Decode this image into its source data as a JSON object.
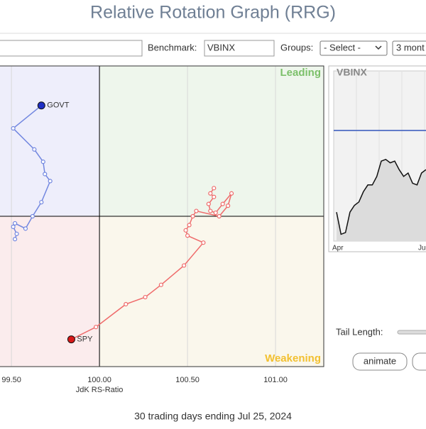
{
  "header": {
    "title": "Relative Rotation Graph (RRG)"
  },
  "toolbar": {
    "benchmark_label": "Benchmark:",
    "benchmark_value": "VBINX",
    "groups_label": "Groups:",
    "groups_value": "- Select -",
    "period_value": "3 mont"
  },
  "chart_data": {
    "type": "line",
    "x_label": "JdK RS-Ratio",
    "xlim": [
      99.435,
      101.274
    ],
    "ylim": [
      99.145,
      100.855
    ],
    "xticks": [
      {
        "value": 99.5,
        "label": "99.50"
      },
      {
        "value": 100,
        "label": "100.00"
      },
      {
        "value": 100.5,
        "label": "100.50"
      },
      {
        "value": 101,
        "label": "101.00"
      }
    ],
    "quadrant_center": {
      "x": 100,
      "y": 100
    },
    "quadrants": {
      "leading": "Leading",
      "weakening": "Weakening"
    },
    "series": [
      {
        "name": "GOVT",
        "color": "#7287e0",
        "head_color": "#1f2fc4",
        "x": [
          99.52,
          99.53,
          99.51,
          99.52,
          99.58,
          99.62,
          99.67,
          99.72,
          99.69,
          99.68,
          99.63,
          99.51,
          99.67
        ],
        "y": [
          99.87,
          99.9,
          99.94,
          99.96,
          99.93,
          100.0,
          100.08,
          100.2,
          100.24,
          100.31,
          100.38,
          100.5,
          100.63
        ]
      },
      {
        "name": "SPY",
        "color": "#ef6b6b",
        "head_color": "#d81818",
        "x": [
          100.65,
          100.63,
          100.65,
          100.62,
          100.63,
          100.66,
          100.7,
          100.75,
          100.73,
          100.68,
          100.55,
          100.53,
          100.51,
          100.49,
          100.5,
          100.59,
          100.48,
          100.35,
          100.26,
          100.15,
          99.98,
          99.84
        ],
        "y": [
          100.16,
          100.13,
          100.11,
          100.07,
          100.03,
          100.02,
          100.07,
          100.13,
          100.06,
          100.0,
          100.03,
          100.0,
          99.95,
          99.92,
          99.89,
          99.85,
          99.72,
          99.61,
          99.54,
          99.5,
          99.37,
          99.3
        ]
      }
    ]
  },
  "mini_chart": {
    "title": "VBINX",
    "x_labels": [
      "Apr",
      "Ju"
    ],
    "ylim": [
      0,
      100
    ],
    "reference": 65,
    "values": [
      17,
      4,
      5,
      17,
      21,
      23,
      29,
      33,
      33,
      38,
      47,
      48,
      46,
      47,
      42,
      38,
      40,
      34,
      33,
      40,
      42
    ]
  },
  "controls": {
    "tail_length_label": "Tail Length:",
    "animate": "animate"
  },
  "footer": {
    "caption": "30 trading days ending Jul 25, 2024"
  }
}
